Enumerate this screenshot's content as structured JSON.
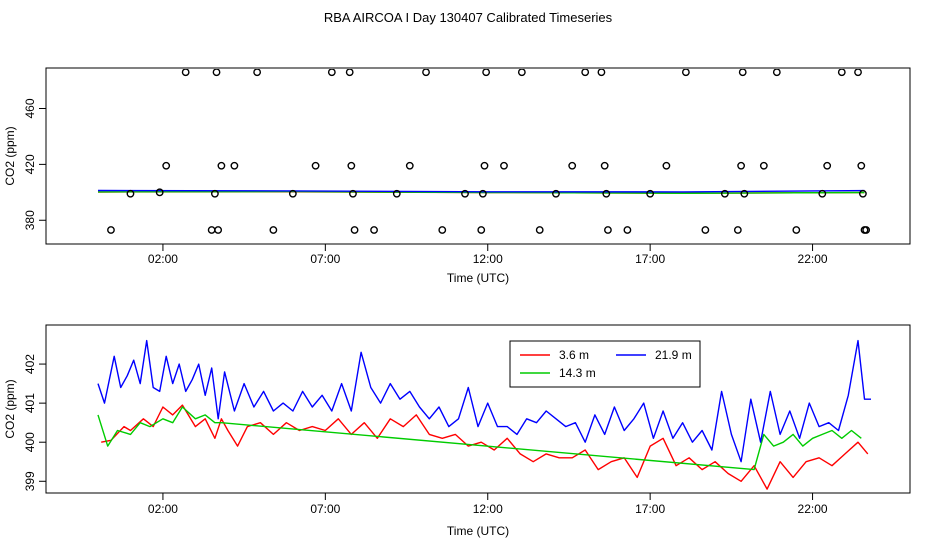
{
  "title": "RBA AIRCOA I  Day 130407  Calibrated Timeseries",
  "chart_data": [
    {
      "type": "scatter",
      "title": "",
      "xlabel": "Time (UTC)",
      "ylabel": "CO2 (ppm)",
      "x_unit": "hours UTC",
      "xlim": [
        -1.6,
        25.0
      ],
      "ylim": [
        363,
        489
      ],
      "x_ticks": [
        2,
        7,
        12,
        17,
        22
      ],
      "x_tick_labels": [
        "02:00",
        "07:00",
        "12:00",
        "17:00",
        "22:00"
      ],
      "y_ticks": [
        380,
        420,
        460
      ],
      "y_tick_labels": [
        "380",
        "420",
        "460"
      ],
      "markers": {
        "name": "calibration points",
        "x": [
          0.4,
          1.9,
          1.0,
          2.1,
          2.7,
          3.5,
          3.6,
          3.7,
          3.8,
          3.65,
          4.9,
          4.2,
          5.4,
          6.0,
          6.7,
          7.2,
          7.75,
          7.8,
          7.85,
          7.9,
          8.5,
          9.2,
          9.6,
          10.1,
          10.6,
          11.3,
          11.8,
          11.85,
          11.9,
          11.95,
          12.5,
          13.05,
          13.6,
          14.1,
          14.6,
          15.0,
          15.5,
          15.6,
          15.65,
          15.7,
          16.3,
          17.0,
          17.5,
          18.1,
          18.7,
          19.3,
          19.7,
          19.8,
          19.85,
          19.9,
          20.5,
          20.9,
          21.5,
          22.3,
          22.45,
          22.9,
          23.4,
          23.5,
          23.55,
          23.6,
          23.65
        ],
        "y": [
          373,
          400,
          399,
          419,
          486,
          373,
          399,
          373,
          419,
          486,
          486,
          419,
          373,
          399,
          419,
          486,
          486,
          419,
          399,
          373,
          373,
          399,
          419,
          486,
          373,
          399,
          373,
          399,
          419,
          486,
          419,
          486,
          373,
          399,
          419,
          486,
          486,
          419,
          399,
          373,
          373,
          399,
          419,
          486,
          373,
          399,
          373,
          419,
          486,
          399,
          419,
          486,
          373,
          399,
          419,
          486,
          486,
          419,
          399,
          373,
          373
        ]
      },
      "series": [
        {
          "name": "3.6 m",
          "color": "#ff0000",
          "x": [
            0,
            6,
            12,
            18,
            23.6
          ],
          "values": [
            400.2,
            400.4,
            399.9,
            399.4,
            399.8
          ]
        },
        {
          "name": "14.3 m",
          "color": "#00cc00",
          "x": [
            0,
            6,
            12,
            18,
            23.6
          ],
          "values": [
            400.3,
            400.5,
            399.9,
            399.3,
            399.9
          ]
        },
        {
          "name": "21.9 m",
          "color": "#0000ff",
          "x": [
            0,
            6,
            12,
            18,
            23.6
          ],
          "values": [
            401.3,
            401.0,
            400.4,
            400.3,
            401.2
          ]
        }
      ]
    },
    {
      "type": "line",
      "title": "",
      "xlabel": "Time (UTC)",
      "ylabel": "CO2 (ppm)",
      "x_unit": "hours UTC",
      "xlim": [
        -1.6,
        25.0
      ],
      "ylim": [
        398.7,
        403.0
      ],
      "x_ticks": [
        2,
        7,
        12,
        17,
        22
      ],
      "x_tick_labels": [
        "02:00",
        "07:00",
        "12:00",
        "17:00",
        "22:00"
      ],
      "y_ticks": [
        399,
        400,
        401,
        402
      ],
      "y_tick_labels": [
        "399",
        "400",
        "401",
        "402"
      ],
      "legend": {
        "position": "top-center",
        "order": [
          "3.6 m",
          "14.3 m",
          "21.9 m"
        ]
      },
      "series": [
        {
          "name": "3.6 m",
          "color": "#ff0000",
          "x": [
            0.1,
            0.4,
            0.8,
            1.0,
            1.4,
            1.7,
            2.0,
            2.3,
            2.6,
            3.0,
            3.3,
            3.6,
            3.8,
            4.0,
            4.3,
            4.6,
            5.0,
            5.4,
            5.8,
            6.2,
            6.6,
            7.0,
            7.4,
            7.8,
            8.2,
            8.6,
            9.0,
            9.4,
            9.8,
            10.2,
            10.6,
            11.0,
            11.4,
            11.8,
            12.2,
            12.6,
            13.0,
            13.4,
            13.8,
            14.2,
            14.6,
            15.0,
            15.4,
            15.8,
            16.2,
            16.6,
            17.0,
            17.4,
            17.8,
            18.2,
            18.6,
            19.0,
            19.4,
            19.8,
            20.2,
            20.6,
            21.0,
            21.4,
            21.8,
            22.2,
            22.6,
            23.0,
            23.4,
            23.7
          ],
          "values": [
            400.0,
            400.05,
            400.4,
            400.3,
            400.6,
            400.4,
            400.9,
            400.7,
            400.95,
            400.4,
            400.6,
            400.1,
            400.6,
            400.3,
            399.9,
            400.4,
            400.5,
            400.2,
            400.5,
            400.3,
            400.4,
            400.3,
            400.6,
            400.2,
            400.5,
            400.1,
            400.6,
            400.4,
            400.7,
            400.2,
            400.1,
            400.2,
            399.9,
            400.0,
            399.8,
            400.1,
            399.7,
            399.5,
            399.7,
            399.6,
            399.6,
            399.8,
            399.3,
            399.5,
            399.6,
            399.1,
            399.9,
            400.1,
            399.4,
            399.6,
            399.3,
            399.5,
            399.2,
            399.0,
            399.4,
            398.8,
            399.5,
            399.1,
            399.5,
            399.6,
            399.4,
            399.7,
            400.0,
            399.7
          ]
        },
        {
          "name": "14.3 m",
          "color": "#00cc00",
          "x": [
            0.0,
            0.3,
            0.6,
            1.0,
            1.3,
            1.6,
            2.0,
            2.3,
            2.6,
            3.0,
            3.3,
            3.6,
            3.8,
            20.2,
            20.5,
            20.8,
            21.1,
            21.4,
            21.7,
            22.0,
            22.3,
            22.6,
            22.9,
            23.2,
            23.5
          ],
          "values": [
            400.7,
            399.9,
            400.3,
            400.2,
            400.5,
            400.4,
            400.6,
            400.5,
            400.9,
            400.6,
            400.7,
            400.5,
            400.5,
            399.3,
            400.2,
            399.9,
            400.0,
            400.2,
            399.9,
            400.1,
            400.2,
            400.3,
            400.1,
            400.3,
            400.1
          ]
        },
        {
          "name": "21.9 m",
          "color": "#0000ff",
          "x": [
            0.0,
            0.2,
            0.5,
            0.7,
            0.9,
            1.1,
            1.3,
            1.5,
            1.7,
            1.9,
            2.1,
            2.3,
            2.5,
            2.7,
            2.9,
            3.1,
            3.3,
            3.5,
            3.7,
            3.9,
            4.2,
            4.5,
            4.8,
            5.1,
            5.4,
            5.7,
            6.0,
            6.3,
            6.6,
            6.9,
            7.2,
            7.5,
            7.8,
            8.1,
            8.4,
            8.7,
            9.0,
            9.3,
            9.6,
            9.9,
            10.2,
            10.5,
            10.8,
            11.1,
            11.4,
            11.7,
            12.0,
            12.3,
            12.6,
            12.9,
            13.2,
            13.5,
            13.8,
            14.1,
            14.4,
            14.7,
            15.0,
            15.3,
            15.6,
            15.9,
            16.2,
            16.5,
            16.8,
            17.1,
            17.4,
            17.7,
            18.0,
            18.3,
            18.6,
            18.9,
            19.2,
            19.5,
            19.8,
            20.1,
            20.4,
            20.7,
            21.0,
            21.3,
            21.6,
            21.9,
            22.2,
            22.5,
            22.8,
            23.1,
            23.4,
            23.6,
            23.8
          ],
          "values": [
            401.5,
            401.0,
            402.2,
            401.4,
            401.7,
            402.1,
            401.5,
            402.6,
            401.4,
            401.3,
            402.2,
            401.5,
            402.0,
            401.3,
            401.6,
            402.0,
            401.2,
            401.9,
            400.6,
            401.8,
            400.8,
            401.5,
            400.9,
            401.3,
            400.8,
            401.0,
            400.8,
            401.3,
            400.9,
            401.2,
            400.8,
            401.5,
            400.8,
            402.3,
            401.4,
            401.0,
            401.5,
            401.1,
            401.3,
            400.9,
            400.6,
            400.9,
            400.4,
            400.6,
            401.4,
            400.4,
            401.0,
            400.4,
            400.4,
            400.2,
            400.6,
            400.5,
            400.8,
            400.6,
            400.4,
            400.5,
            400.0,
            400.7,
            400.2,
            400.9,
            400.3,
            400.6,
            401.0,
            400.1,
            400.8,
            400.1,
            400.5,
            400.0,
            400.3,
            399.8,
            401.3,
            400.2,
            399.5,
            401.1,
            400.0,
            401.3,
            400.2,
            400.8,
            400.1,
            401.0,
            400.4,
            400.5,
            400.3,
            401.2,
            402.6,
            401.1,
            401.1
          ]
        }
      ]
    }
  ]
}
